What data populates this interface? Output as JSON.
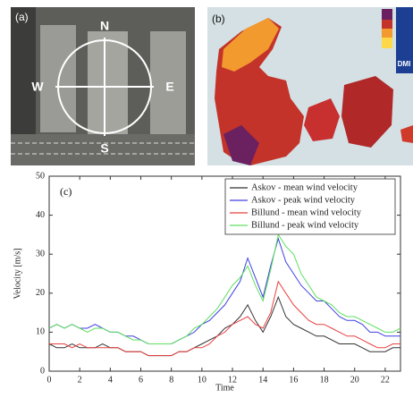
{
  "panels": {
    "a": {
      "label": "(a)",
      "north": "N",
      "east": "E",
      "south": "S",
      "west": "W"
    },
    "b": {
      "label": "(b)",
      "logo": "DMI"
    }
  },
  "chart_data": {
    "type": "line",
    "panel_label": "(c)",
    "x_label": "Time",
    "y_label": "Velocity [m/s]",
    "x": [
      0,
      0.5,
      1,
      1.5,
      2,
      2.5,
      3,
      3.5,
      4,
      4.5,
      5,
      5.5,
      6,
      6.5,
      7,
      7.5,
      8,
      8.5,
      9,
      9.5,
      10,
      10.5,
      11,
      11.5,
      12,
      12.5,
      13,
      13.5,
      14,
      14.5,
      15,
      15.5,
      16,
      16.5,
      17,
      17.5,
      18,
      18.5,
      19,
      19.5,
      20,
      20.5,
      21,
      21.5,
      22,
      22.5,
      23
    ],
    "series": [
      {
        "name": "Askov - mean wind velocity",
        "color": "#333333",
        "values": [
          7,
          6,
          6,
          7,
          6,
          6,
          6,
          7,
          6,
          6,
          5,
          5,
          5,
          4,
          4,
          4,
          4,
          5,
          5,
          6,
          7,
          8,
          9,
          11,
          12,
          14,
          17,
          13,
          10,
          14,
          19,
          14,
          12,
          11,
          10,
          9,
          9,
          8,
          7,
          7,
          7,
          6,
          5,
          5,
          5,
          6,
          6
        ]
      },
      {
        "name": "Askov - peak wind velocity",
        "color": "#4040e0",
        "values": [
          11,
          12,
          11,
          12,
          11,
          11,
          12,
          11,
          10,
          10,
          9,
          9,
          8,
          7,
          7,
          7,
          7,
          8,
          9,
          10,
          12,
          13,
          15,
          17,
          20,
          23,
          29,
          24,
          19,
          27,
          34,
          28,
          25,
          22,
          20,
          18,
          18,
          16,
          14,
          13,
          13,
          12,
          10,
          10,
          9,
          9,
          9
        ]
      },
      {
        "name": "Billund - mean wind velocity",
        "color": "#e84040",
        "values": [
          7,
          7,
          7,
          6,
          7,
          6,
          6,
          6,
          6,
          6,
          5,
          5,
          5,
          4,
          4,
          4,
          4,
          5,
          5,
          6,
          6,
          7,
          9,
          10,
          12,
          13,
          14,
          12,
          11,
          15,
          23,
          20,
          17,
          15,
          13,
          12,
          12,
          11,
          10,
          9,
          9,
          8,
          7,
          6,
          6,
          7,
          7
        ]
      },
      {
        "name": "Billund - peak wind velocity",
        "color": "#5fe05f",
        "values": [
          11,
          12,
          11,
          12,
          11,
          10,
          11,
          11,
          10,
          10,
          9,
          8,
          8,
          7,
          7,
          7,
          7,
          8,
          9,
          11,
          12,
          14,
          16,
          19,
          22,
          24,
          27,
          22,
          18,
          26,
          35,
          32,
          30,
          25,
          22,
          19,
          18,
          17,
          15,
          14,
          14,
          13,
          12,
          11,
          10,
          10,
          11
        ]
      }
    ],
    "xlim": [
      0,
      23
    ],
    "xticks": [
      0,
      2,
      4,
      6,
      8,
      10,
      12,
      14,
      16,
      18,
      20,
      22
    ],
    "ylim": [
      0,
      50
    ],
    "yticks": [
      0,
      10,
      20,
      30,
      40,
      50
    ],
    "grid": false,
    "legend": "upper right"
  }
}
